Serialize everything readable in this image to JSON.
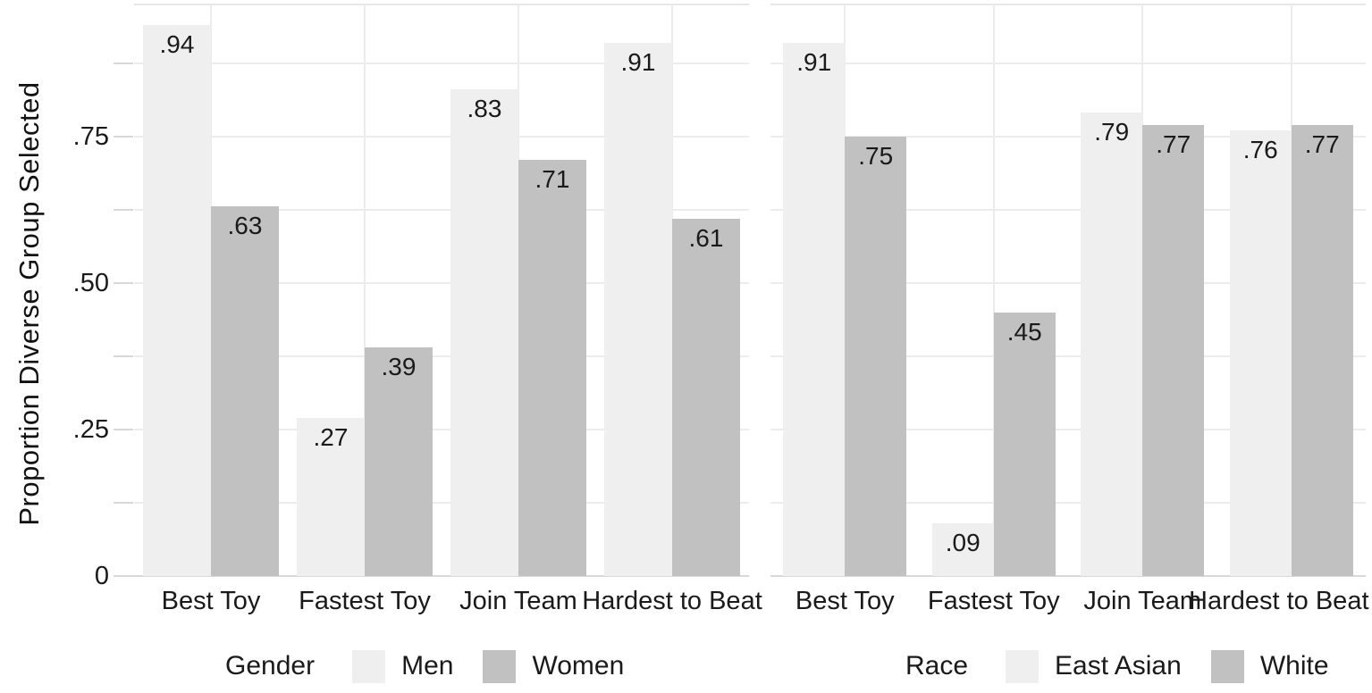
{
  "y_axis": {
    "title": "Proportion Diverse Group Selected",
    "ticks": [
      {
        "label": "0",
        "value": 0
      },
      {
        "label": ".25",
        "value": 0.25
      },
      {
        "label": ".50",
        "value": 0.5
      },
      {
        "label": ".75",
        "value": 0.75
      }
    ],
    "minor_grid_step": 0.125,
    "range": [
      0,
      0.975
    ]
  },
  "colors": {
    "bar_light": "#efefef",
    "bar_dark": "#c1c1c1",
    "gridline": "#ececec",
    "axis_line": "#d8d8d8",
    "text": "#1a1a1a",
    "background": "#ffffff"
  },
  "chart_data": [
    {
      "type": "bar",
      "panel": "left",
      "legend_title": "Gender",
      "legend_position": "bottom",
      "grid": "on",
      "ylabel": "Proportion Diverse Group Selected",
      "ylim": [
        0,
        0.975
      ],
      "categories": [
        "Best Toy",
        "Fastest Toy",
        "Join Team",
        "Hardest to Beat"
      ],
      "series": [
        {
          "name": "Men",
          "swatch": "bar_light",
          "values": [
            0.94,
            0.27,
            0.83,
            0.91
          ],
          "labels": [
            ".94",
            ".27",
            ".83",
            ".91"
          ]
        },
        {
          "name": "Women",
          "swatch": "bar_dark",
          "values": [
            0.63,
            0.39,
            0.71,
            0.61
          ],
          "labels": [
            ".63",
            ".39",
            ".71",
            ".61"
          ]
        }
      ]
    },
    {
      "type": "bar",
      "panel": "right",
      "legend_title": "Race",
      "legend_position": "bottom",
      "grid": "on",
      "ylim": [
        0,
        0.975
      ],
      "categories": [
        "Best Toy",
        "Fastest Toy",
        "Join Team",
        "Hardest to Beat"
      ],
      "series": [
        {
          "name": "East Asian",
          "swatch": "bar_light",
          "values": [
            0.91,
            0.09,
            0.79,
            0.76
          ],
          "labels": [
            ".91",
            ".09",
            ".79",
            ".76"
          ]
        },
        {
          "name": "White",
          "swatch": "bar_dark",
          "values": [
            0.75,
            0.45,
            0.77,
            0.77
          ],
          "labels": [
            ".75",
            ".45",
            ".77",
            ".77"
          ]
        }
      ]
    }
  ]
}
